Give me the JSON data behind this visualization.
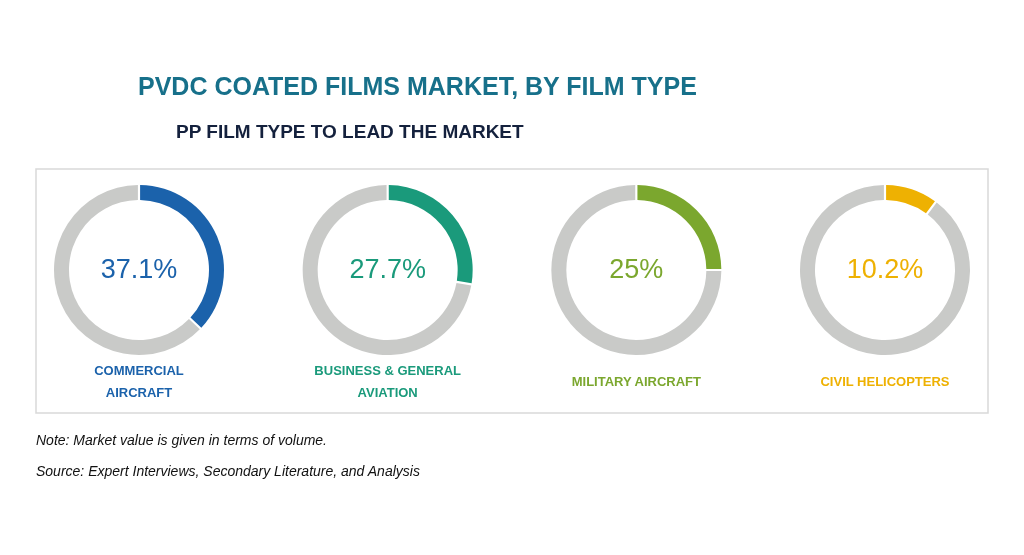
{
  "chart_data": [
    {
      "type": "other",
      "title": "PVDC COATED FILMS MARKET, BY FILM TYPE",
      "subtitle": "PP FILM TYPE TO LEAD THE MARKET",
      "annotations": [
        "Note: Market value is given in terms of volume.",
        "Source: Expert Interviews, Secondary Literature, and Analysis"
      ]
    },
    {
      "type": "donut",
      "title": "COMMERCIAL AIRCRAFT",
      "categories": [
        null,
        null
      ],
      "values": [
        37.1,
        62.9
      ],
      "colors": [
        "#1b62ab",
        "#c9cac8"
      ],
      "value_labels": [
        "37.1%",
        null
      ]
    },
    {
      "type": "donut",
      "title": "BUSINESS & GENERAL AVIATION",
      "categories": [
        null,
        null
      ],
      "values": [
        27.7,
        72.3
      ],
      "colors": [
        "#1a9a7b",
        "#c9cac8"
      ],
      "value_labels": [
        "27.7%",
        null
      ]
    },
    {
      "type": "donut",
      "title": "MILITARY AIRCRAFT",
      "categories": [
        null,
        null
      ],
      "values": [
        25,
        75
      ],
      "colors": [
        "#7ba72e",
        "#c9cac8"
      ],
      "value_labels": [
        "25%",
        null
      ]
    },
    {
      "type": "donut",
      "title": "CIVIL HELICOPTERS",
      "categories": [
        null,
        null
      ],
      "values": [
        10.2,
        89.8
      ],
      "colors": [
        "#eeb102",
        "#c9cac8"
      ],
      "value_labels": [
        "10.2%",
        null
      ]
    }
  ]
}
